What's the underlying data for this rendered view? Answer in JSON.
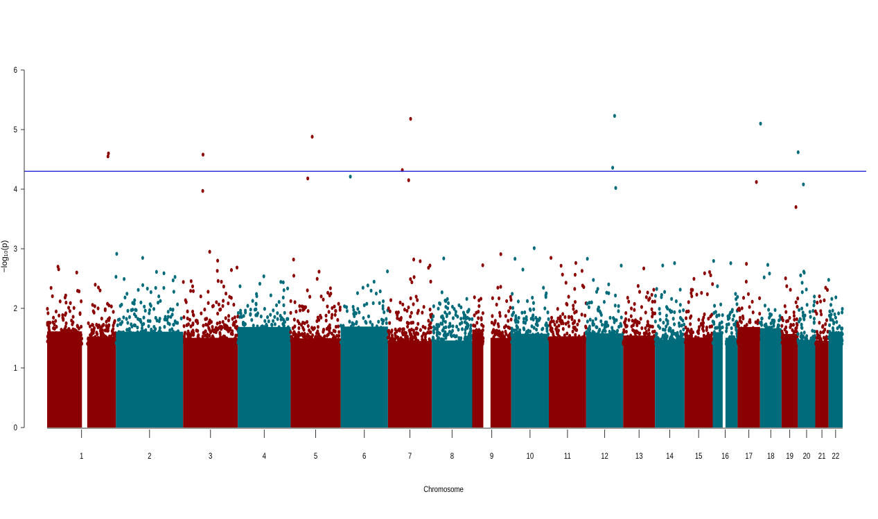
{
  "chart_data": {
    "type": "scatter",
    "subtype": "manhattan",
    "title": "",
    "xlabel": "Chromosome",
    "ylabel": "−log₁₀(p)",
    "ylim": [
      0,
      6
    ],
    "yticks": [
      0,
      1,
      2,
      3,
      4,
      5,
      6
    ],
    "grid": false,
    "threshold": {
      "value": 4.3,
      "color": "#3333dd"
    },
    "colors": {
      "odd": "#8b0000",
      "even": "#006b7a"
    },
    "chromosomes": [
      {
        "label": "1",
        "length_mb": 249,
        "gaps_mb": [
          [
            126,
            145
          ]
        ]
      },
      {
        "label": "2",
        "length_mb": 243,
        "gaps_mb": []
      },
      {
        "label": "3",
        "length_mb": 198,
        "gaps_mb": []
      },
      {
        "label": "4",
        "length_mb": 191,
        "gaps_mb": []
      },
      {
        "label": "5",
        "length_mb": 181,
        "gaps_mb": []
      },
      {
        "label": "6",
        "length_mb": 171,
        "gaps_mb": []
      },
      {
        "label": "7",
        "length_mb": 159,
        "gaps_mb": []
      },
      {
        "label": "8",
        "length_mb": 146,
        "gaps_mb": []
      },
      {
        "label": "9",
        "length_mb": 141,
        "gaps_mb": [
          [
            40,
            66
          ]
        ]
      },
      {
        "label": "10",
        "length_mb": 136,
        "gaps_mb": []
      },
      {
        "label": "11",
        "length_mb": 135,
        "gaps_mb": []
      },
      {
        "label": "12",
        "length_mb": 134,
        "gaps_mb": []
      },
      {
        "label": "13",
        "length_mb": 115,
        "gaps_mb": []
      },
      {
        "label": "14",
        "length_mb": 107,
        "gaps_mb": []
      },
      {
        "label": "15",
        "length_mb": 102,
        "gaps_mb": []
      },
      {
        "label": "16",
        "length_mb": 90,
        "gaps_mb": [
          [
            36,
            46
          ]
        ]
      },
      {
        "label": "17",
        "length_mb": 81,
        "gaps_mb": []
      },
      {
        "label": "18",
        "length_mb": 78,
        "gaps_mb": []
      },
      {
        "label": "19",
        "length_mb": 59,
        "gaps_mb": []
      },
      {
        "label": "20",
        "length_mb": 63,
        "gaps_mb": []
      },
      {
        "label": "21",
        "length_mb": 48,
        "gaps_mb": []
      },
      {
        "label": "22",
        "length_mb": 51,
        "gaps_mb": []
      }
    ],
    "top_hits": [
      {
        "chr": "1",
        "pos_mb": 220,
        "value": 4.55
      },
      {
        "chr": "1",
        "pos_mb": 222,
        "value": 4.6
      },
      {
        "chr": "3",
        "pos_mb": 72,
        "value": 4.58
      },
      {
        "chr": "3",
        "pos_mb": 71,
        "value": 3.97
      },
      {
        "chr": "5",
        "pos_mb": 78,
        "value": 4.88
      },
      {
        "chr": "5",
        "pos_mb": 62,
        "value": 4.18
      },
      {
        "chr": "6",
        "pos_mb": 35,
        "value": 4.21
      },
      {
        "chr": "7",
        "pos_mb": 52,
        "value": 4.32
      },
      {
        "chr": "7",
        "pos_mb": 82,
        "value": 5.18
      },
      {
        "chr": "7",
        "pos_mb": 75,
        "value": 4.15
      },
      {
        "chr": "12",
        "pos_mb": 96,
        "value": 4.36
      },
      {
        "chr": "12",
        "pos_mb": 103,
        "value": 5.23
      },
      {
        "chr": "12",
        "pos_mb": 107,
        "value": 4.02
      },
      {
        "chr": "17",
        "pos_mb": 68,
        "value": 4.12
      },
      {
        "chr": "18",
        "pos_mb": 2,
        "value": 5.1
      },
      {
        "chr": "19",
        "pos_mb": 52,
        "value": 3.7
      },
      {
        "chr": "20",
        "pos_mb": 1,
        "value": 4.62
      },
      {
        "chr": "20",
        "pos_mb": 20,
        "value": 4.08
      }
    ]
  }
}
